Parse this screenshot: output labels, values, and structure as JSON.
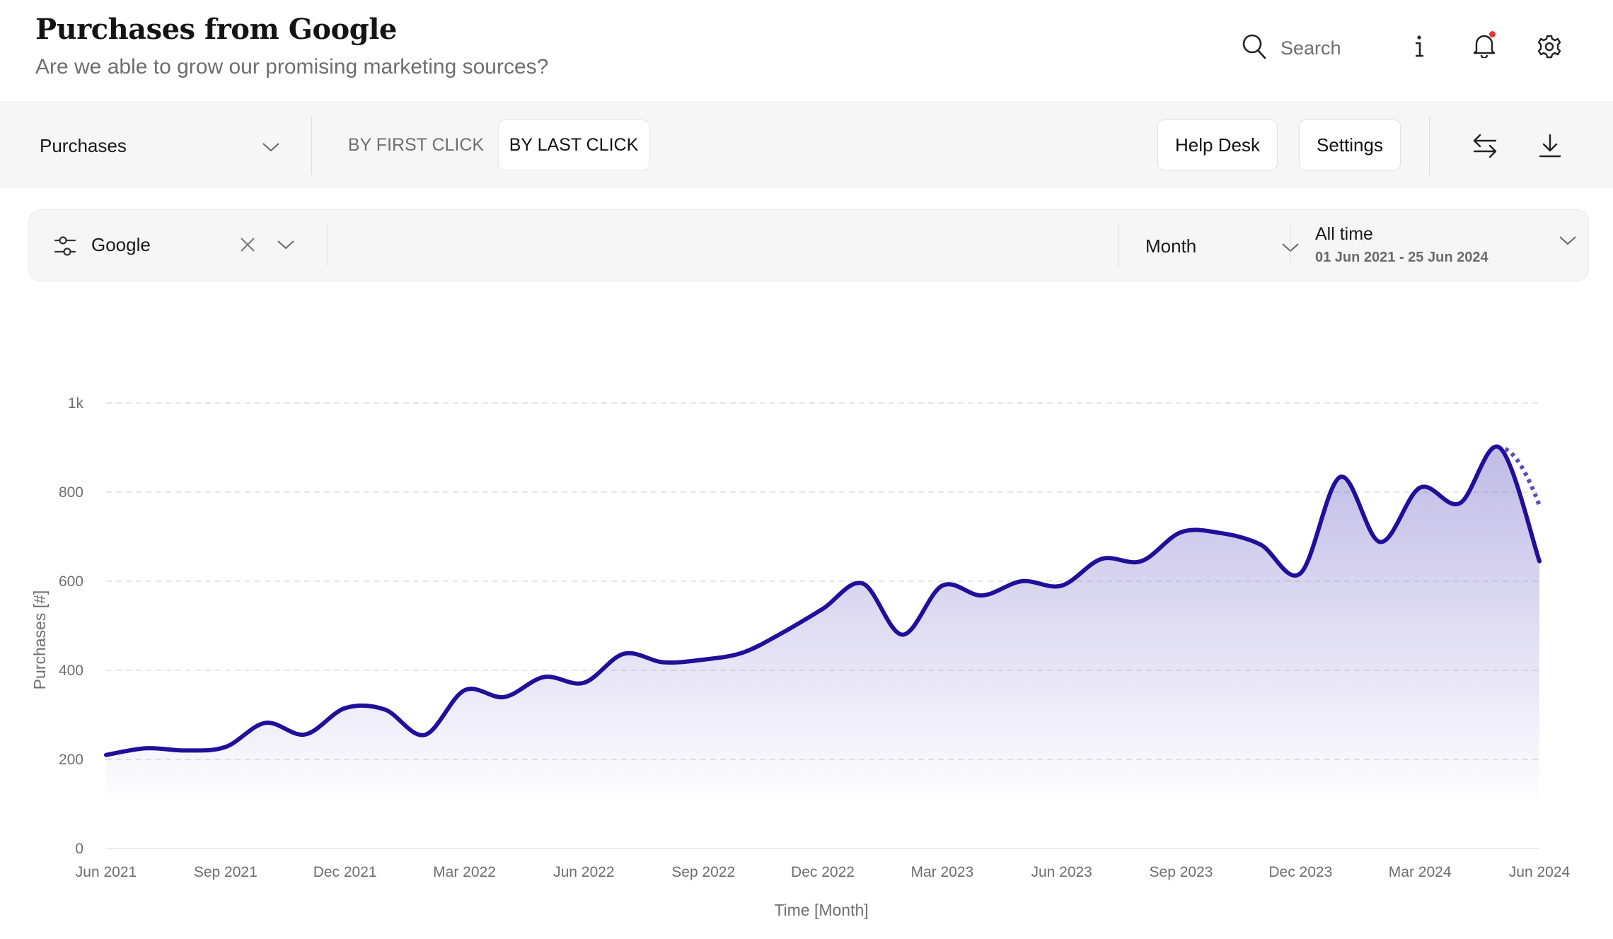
{
  "header": {
    "title": "Purchases from Google",
    "subtitle": "Are we able to grow our promising marketing sources?",
    "search_placeholder": "Search",
    "icons": [
      "search-icon",
      "info-icon",
      "bell-icon",
      "gear-icon"
    ],
    "notification_dot_color": "#e53935"
  },
  "toolbar": {
    "metric": "Purchases",
    "attribution": [
      {
        "label": "BY FIRST CLICK",
        "active": false
      },
      {
        "label": "BY LAST CLICK",
        "active": true
      }
    ],
    "help_desk_label": "Help Desk",
    "settings_label": "Settings",
    "icons": [
      "swap-icon",
      "download-icon"
    ]
  },
  "filters": {
    "source": "Google",
    "granularity": "Month",
    "date_label": "All time",
    "date_range": "01 Jun 2021 - 25 Jun 2024"
  },
  "chart_data": {
    "type": "area",
    "xlabel": "Time [Month]",
    "ylabel": "Purchases [#]",
    "ylim": [
      0,
      1000
    ],
    "yticks": [
      0,
      200,
      400,
      600,
      800,
      1000
    ],
    "ytick_labels": [
      "0",
      "200",
      "400",
      "600",
      "800",
      "1k"
    ],
    "xticks": [
      "Jun 2021",
      "Sep 2021",
      "Dec 2021",
      "Mar 2022",
      "Jun 2022",
      "Sep 2022",
      "Dec 2022",
      "Mar 2023",
      "Jun 2023",
      "Sep 2023",
      "Dec 2023",
      "Mar 2024",
      "Jun 2024"
    ],
    "grid": true,
    "line_color": "#1f0f9a",
    "fill_color": "#6a5cc4",
    "x": [
      "Jun 2021",
      "Jul 2021",
      "Aug 2021",
      "Sep 2021",
      "Oct 2021",
      "Nov 2021",
      "Dec 2021",
      "Jan 2022",
      "Feb 2022",
      "Mar 2022",
      "Apr 2022",
      "May 2022",
      "Jun 2022",
      "Jul 2022",
      "Aug 2022",
      "Sep 2022",
      "Oct 2022",
      "Nov 2022",
      "Dec 2022",
      "Jan 2023",
      "Feb 2023",
      "Mar 2023",
      "Apr 2023",
      "May 2023",
      "Jun 2023",
      "Jul 2023",
      "Aug 2023",
      "Sep 2023",
      "Oct 2023",
      "Nov 2023",
      "Dec 2023",
      "Jan 2024",
      "Feb 2024",
      "Mar 2024",
      "Apr 2024",
      "May 2024",
      "Jun 2024"
    ],
    "values": [
      210,
      225,
      220,
      228,
      282,
      256,
      315,
      312,
      255,
      355,
      340,
      385,
      372,
      437,
      418,
      424,
      440,
      485,
      538,
      595,
      480,
      590,
      568,
      600,
      590,
      650,
      645,
      710,
      708,
      682,
      618,
      834,
      688,
      810,
      775,
      900,
      645
    ],
    "projection": {
      "from": "May 2024",
      "to": "Jun 2024",
      "value": 770,
      "style": "dotted"
    }
  }
}
